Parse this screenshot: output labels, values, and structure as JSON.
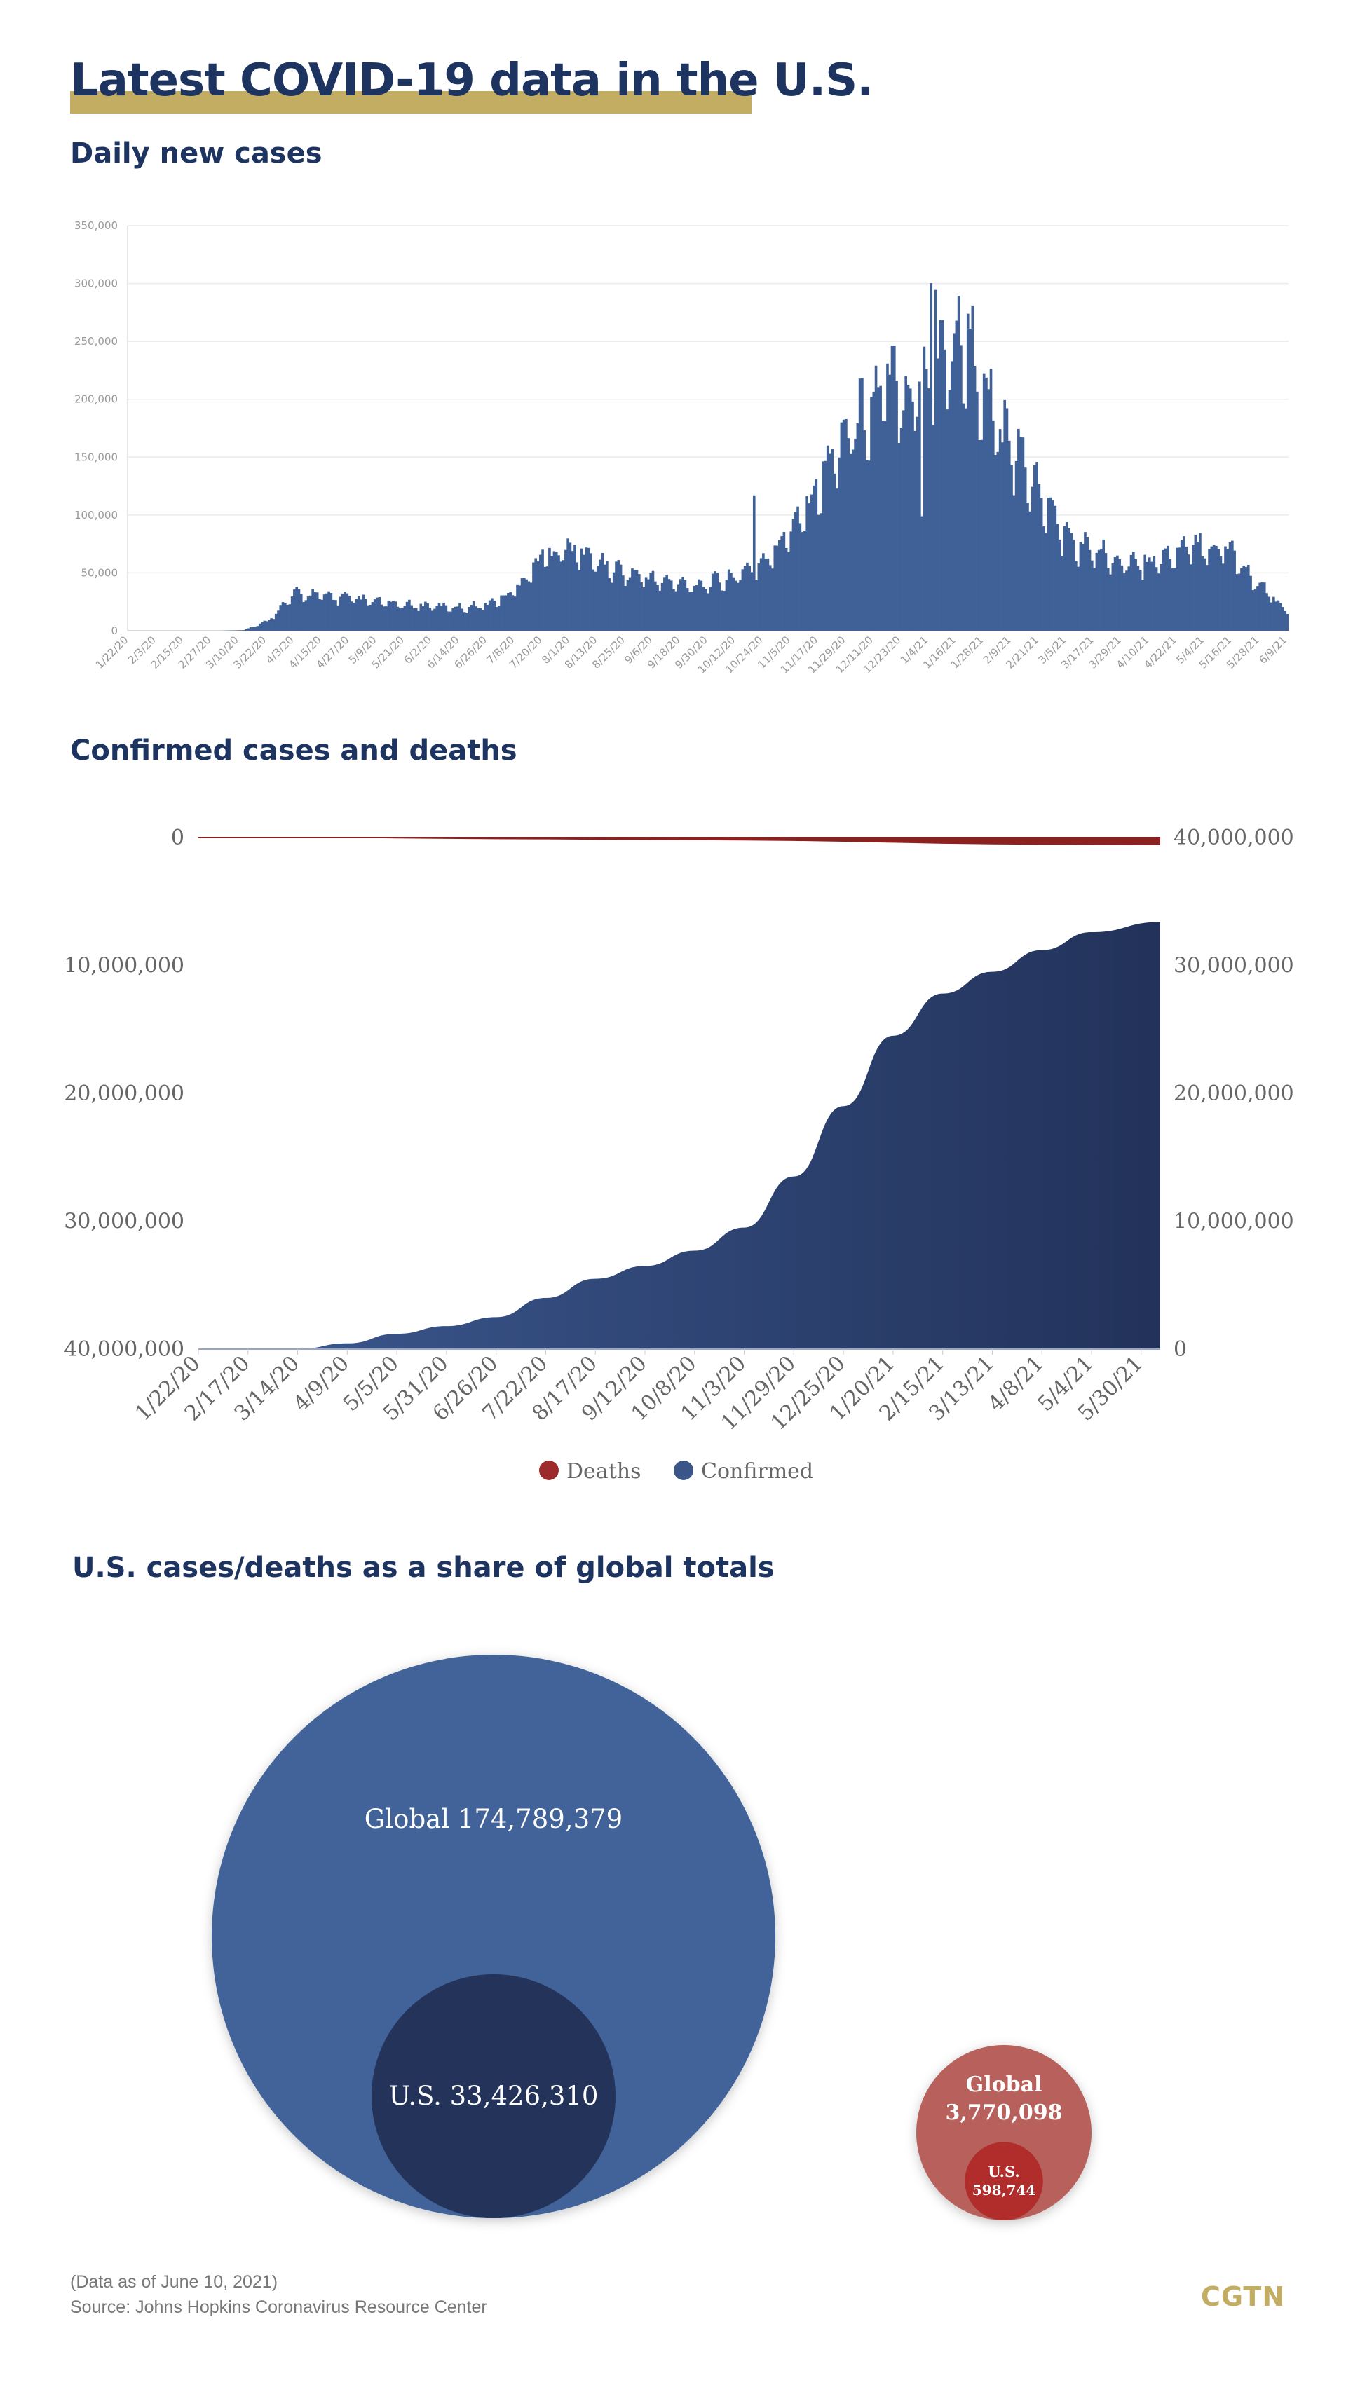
{
  "title": "Latest COVID-19 data in the U.S.",
  "sections": {
    "daily": "Daily new cases",
    "cumulative": "Confirmed cases and deaths",
    "share": "U.S. cases/deaths as a share of global totals"
  },
  "colors": {
    "navy_title": "#1d3461",
    "gold": "#c2ad62",
    "bar_blue": "#3f6197",
    "confirmed_dark": "#22325a",
    "confirmed_light": "#3c5990",
    "deaths": "#8c2121",
    "global_circle": "#426399",
    "us_circle": "#243359",
    "global_deaths_circle": "#b8615c",
    "us_deaths_circle": "#b02d2b"
  },
  "chart_data": [
    {
      "type": "bar",
      "title": "Daily new cases",
      "ylim": [
        0,
        350000
      ],
      "yticks": [
        "0",
        "50,000",
        "100,000",
        "150,000",
        "200,000",
        "250,000",
        "300,000",
        "350,000"
      ],
      "xticks": [
        "1/22/20",
        "2/3/20",
        "2/15/20",
        "2/27/20",
        "3/10/20",
        "3/22/20",
        "4/3/20",
        "4/15/20",
        "4/27/20",
        "5/9/20",
        "5/21/20",
        "6/2/20",
        "6/14/20",
        "6/26/20",
        "7/8/20",
        "7/20/20",
        "8/1/20",
        "8/13/20",
        "8/25/20",
        "9/6/20",
        "9/18/20",
        "9/30/20",
        "10/12/20",
        "10/24/20",
        "11/5/20",
        "11/17/20",
        "11/29/20",
        "12/11/20",
        "12/23/20",
        "1/4/21",
        "1/16/21",
        "1/28/21",
        "2/9/21",
        "2/21/21",
        "3/5/21",
        "3/17/21",
        "3/29/21",
        "4/10/21",
        "4/22/21",
        "5/4/21",
        "5/16/21",
        "5/28/21",
        "6/9/21"
      ],
      "date_range": [
        "1/22/20",
        "6/9/21"
      ],
      "trend": {
        "day": [
          0,
          40,
          50,
          60,
          72,
          80,
          95,
          110,
          120,
          135,
          145,
          155,
          165,
          170,
          175,
          180,
          190,
          200,
          210,
          220,
          230,
          240,
          250,
          260,
          270,
          280,
          290,
          300,
          310,
          320,
          330,
          340,
          345,
          350,
          355,
          360,
          365,
          370,
          375,
          380,
          390,
          400,
          410,
          420,
          430,
          440,
          450,
          460,
          470,
          480,
          490,
          500,
          504
        ],
        "value": [
          0,
          0,
          500,
          8000,
          31000,
          31000,
          28000,
          24000,
          22000,
          21000,
          20000,
          22000,
          30000,
          40000,
          52000,
          64000,
          70000,
          64000,
          53000,
          48000,
          43000,
          40000,
          40000,
          44000,
          52000,
          64000,
          95000,
          125000,
          165000,
          185000,
          210000,
          205000,
          215000,
          225000,
          240000,
          245000,
          250000,
          210000,
          190000,
          165000,
          140000,
          105000,
          75000,
          68000,
          62000,
          58000,
          62000,
          70000,
          72000,
          68000,
          42000,
          24000,
          17000
        ]
      }
    },
    {
      "type": "area",
      "title": "Confirmed cases and deaths",
      "xticks": [
        "1/22/20",
        "2/17/20",
        "3/14/20",
        "4/9/20",
        "5/5/20",
        "5/31/20",
        "6/26/20",
        "7/22/20",
        "8/17/20",
        "9/12/20",
        "10/8/20",
        "11/3/20",
        "11/29/20",
        "12/25/20",
        "1/20/21",
        "2/15/21",
        "3/13/21",
        "4/8/21",
        "5/4/21",
        "5/30/21"
      ],
      "left_axis": {
        "ticks": [
          "0",
          "10,000,000",
          "20,000,000",
          "30,000,000",
          "40,000,000"
        ],
        "ylim": [
          0,
          40000000
        ],
        "inverted": true
      },
      "right_axis": {
        "ticks": [
          "40,000,000",
          "30,000,000",
          "20,000,000",
          "10,000,000",
          "0"
        ],
        "ylim": [
          0,
          40000000
        ]
      },
      "legend": [
        "Deaths",
        "Confirmed"
      ],
      "series": [
        {
          "name": "Confirmed",
          "x": [
            "1/22/20",
            "3/14/20",
            "4/9/20",
            "5/5/20",
            "5/31/20",
            "6/26/20",
            "7/22/20",
            "8/17/20",
            "9/12/20",
            "10/8/20",
            "11/3/20",
            "11/29/20",
            "12/25/20",
            "1/20/21",
            "2/15/21",
            "3/13/21",
            "4/8/21",
            "5/4/21",
            "6/9/21"
          ],
          "values": [
            0,
            3000,
            450000,
            1200000,
            1800000,
            2500000,
            4000000,
            5500000,
            6500000,
            7700000,
            9500000,
            13500000,
            19000000,
            24500000,
            27800000,
            29500000,
            31200000,
            32600000,
            33400000
          ]
        },
        {
          "name": "Deaths",
          "x": [
            "1/22/20",
            "3/14/20",
            "4/9/20",
            "5/5/20",
            "5/31/20",
            "6/26/20",
            "7/22/20",
            "8/17/20",
            "9/12/20",
            "10/8/20",
            "11/3/20",
            "11/29/20",
            "12/25/20",
            "1/20/21",
            "2/15/21",
            "3/13/21",
            "4/8/21",
            "5/4/21",
            "6/9/21"
          ],
          "values": [
            0,
            60,
            16000,
            71000,
            106000,
            128000,
            145000,
            172000,
            194000,
            211000,
            233000,
            268000,
            330000,
            405000,
            487000,
            533000,
            561000,
            579000,
            598744
          ]
        }
      ]
    },
    {
      "type": "bubble",
      "title": "U.S. cases/deaths as a share of global totals",
      "bubbles": [
        {
          "group": "cases",
          "label": "Global",
          "value": 174789379,
          "text": "Global 174,789,379"
        },
        {
          "group": "cases",
          "label": "U.S.",
          "value": 33426310,
          "text": "U.S. 33,426,310"
        },
        {
          "group": "deaths",
          "label": "Global",
          "value": 3770098,
          "text_line1": "Global",
          "text_line2": "3,770,098"
        },
        {
          "group": "deaths",
          "label": "U.S.",
          "value": 598744,
          "text_line1": "U.S.",
          "text_line2": "598,744"
        }
      ]
    }
  ],
  "footer": {
    "note": "(Data as of June 10, 2021)",
    "source": "Source: Johns Hopkins Coronavirus Resource Center"
  },
  "logo": "CGTN"
}
